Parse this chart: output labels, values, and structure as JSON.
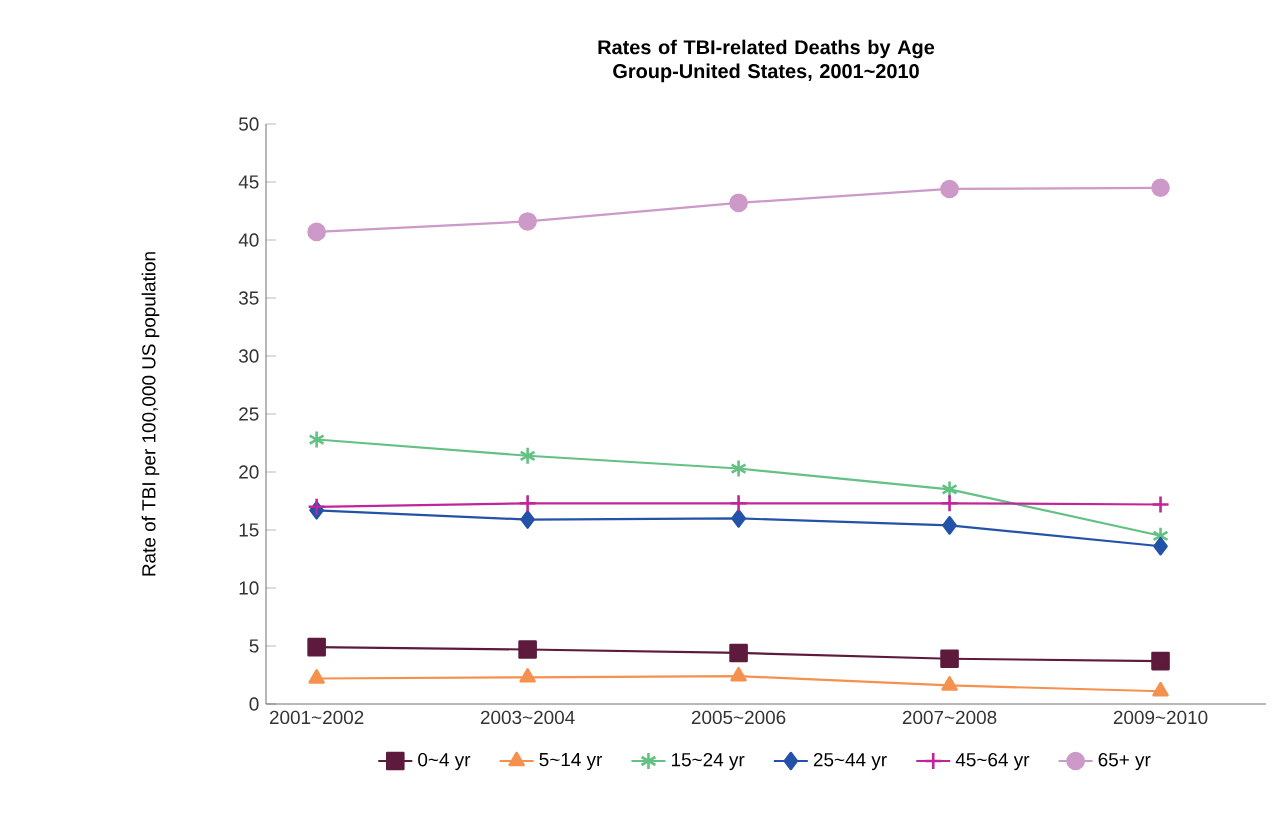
{
  "chart_data": {
    "type": "line",
    "title": "Rates of TBI-related Deaths by Age Group-United States, 2001~2010",
    "ylabel": "Rate of TBI per 100,000 US population",
    "categories": [
      "2001~2002",
      "2003~2004",
      "2005~2006",
      "2007~2008",
      "2009~2010"
    ],
    "ylim": [
      0,
      50
    ],
    "yticks": [
      0,
      5,
      10,
      15,
      20,
      25,
      30,
      35,
      40,
      45,
      50
    ],
    "legend": "bottom",
    "grid": false,
    "line_style": "solid",
    "series": [
      {
        "name": "0~4 yr",
        "color": "#5e1a3c",
        "marker": "square",
        "values": [
          4.9,
          4.7,
          4.4,
          3.9,
          3.7
        ]
      },
      {
        "name": "5~14 yr",
        "color": "#f5914e",
        "marker": "triangle",
        "values": [
          2.2,
          2.3,
          2.4,
          1.6,
          1.1
        ]
      },
      {
        "name": "15~24 yr",
        "color": "#63c184",
        "marker": "cross",
        "values": [
          22.8,
          21.4,
          20.3,
          18.5,
          14.5
        ]
      },
      {
        "name": "25~44 yr",
        "color": "#2352a8",
        "marker": "diamond",
        "values": [
          16.7,
          15.9,
          16.0,
          15.4,
          13.6
        ]
      },
      {
        "name": "45~64 yr",
        "color": "#c0269a",
        "marker": "cross",
        "values": [
          17.0,
          17.3,
          17.3,
          17.3,
          17.2
        ]
      },
      {
        "name": "65+ yr",
        "color": "#cc99c8",
        "marker": "circle",
        "values": [
          40.7,
          41.6,
          43.2,
          44.4,
          44.5
        ]
      }
    ]
  }
}
